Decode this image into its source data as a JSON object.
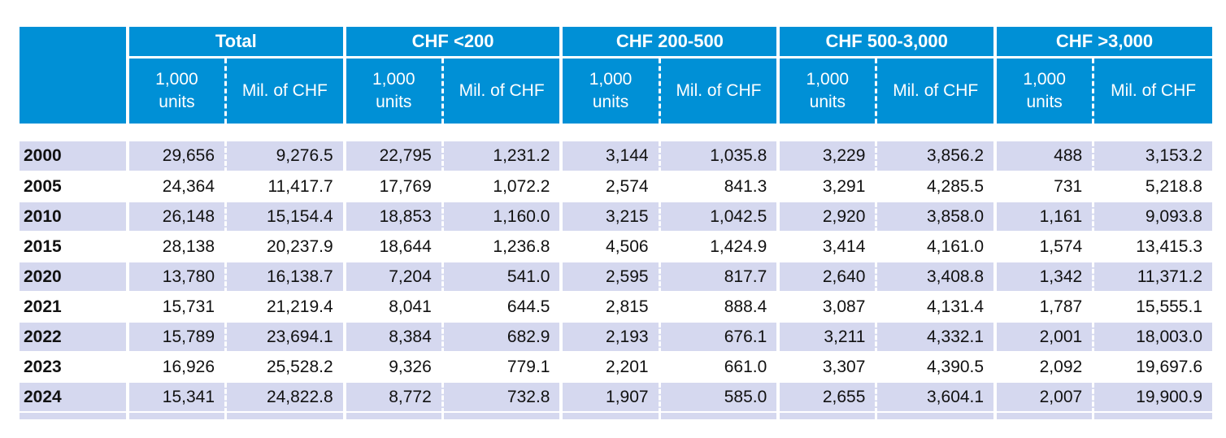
{
  "colors": {
    "header_blue": "#0090D6",
    "band_lavender": "#D5D8EF",
    "text_dark": "#111111",
    "header_text": "#FFFFFF"
  },
  "chart_data": {
    "type": "table",
    "groups": [
      "Total",
      "CHF <200",
      "CHF 200-500",
      "CHF 500-3,000",
      "CHF >3,000"
    ],
    "sub_headers": {
      "units": "1,000\nunits",
      "value": "Mil. of CHF"
    },
    "rows": [
      {
        "year": "2000",
        "values": [
          "29,656",
          "9,276.5",
          "22,795",
          "1,231.2",
          "3,144",
          "1,035.8",
          "3,229",
          "3,856.2",
          "488",
          "3,153.2"
        ]
      },
      {
        "year": "2005",
        "values": [
          "24,364",
          "11,417.7",
          "17,769",
          "1,072.2",
          "2,574",
          "841.3",
          "3,291",
          "4,285.5",
          "731",
          "5,218.8"
        ]
      },
      {
        "year": "2010",
        "values": [
          "26,148",
          "15,154.4",
          "18,853",
          "1,160.0",
          "3,215",
          "1,042.5",
          "2,920",
          "3,858.0",
          "1,161",
          "9,093.8"
        ]
      },
      {
        "year": "2015",
        "values": [
          "28,138",
          "20,237.9",
          "18,644",
          "1,236.8",
          "4,506",
          "1,424.9",
          "3,414",
          "4,161.0",
          "1,574",
          "13,415.3"
        ]
      },
      {
        "year": "2020",
        "values": [
          "13,780",
          "16,138.7",
          "7,204",
          "541.0",
          "2,595",
          "817.7",
          "2,640",
          "3,408.8",
          "1,342",
          "11,371.2"
        ]
      },
      {
        "year": "2021",
        "values": [
          "15,731",
          "21,219.4",
          "8,041",
          "644.5",
          "2,815",
          "888.4",
          "3,087",
          "4,131.4",
          "1,787",
          "15,555.1"
        ]
      },
      {
        "year": "2022",
        "values": [
          "15,789",
          "23,694.1",
          "8,384",
          "682.9",
          "2,193",
          "676.1",
          "3,211",
          "4,332.1",
          "2,001",
          "18,003.0"
        ]
      },
      {
        "year": "2023",
        "values": [
          "16,926",
          "25,528.2",
          "9,326",
          "779.1",
          "2,201",
          "661.0",
          "3,307",
          "4,390.5",
          "2,092",
          "19,697.6"
        ]
      },
      {
        "year": "2024",
        "values": [
          "15,341",
          "24,822.8",
          "8,772",
          "732.8",
          "1,907",
          "585.0",
          "2,655",
          "3,604.1",
          "2,007",
          "19,900.9"
        ]
      }
    ]
  }
}
